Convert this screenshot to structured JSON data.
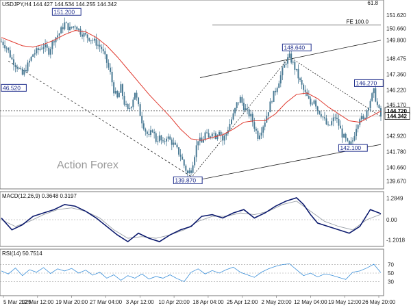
{
  "chart_data": [
    {
      "panel": "price",
      "type": "candlestick",
      "symbol_line": "USDJPY,H4  144.427 144.534 144.255 144.342",
      "watermark": "Action Forex",
      "ylim": [
        139.3,
        152.1
      ],
      "y_ticks": [
        "151.620",
        "150.660",
        "149.800",
        "148.475",
        "147.360",
        "146.220",
        "145.170",
        "144.720",
        "144.342",
        "142.920",
        "141.780",
        "140.660",
        "139.670"
      ],
      "top_right_partial": "61.8",
      "fe_label": "FE 100.0",
      "fe_level": 150.9,
      "current_price": "144.342",
      "ref_price": "144.720",
      "annotations": [
        "151.200",
        "46.520",
        "148.640",
        "146.270",
        "142.100",
        "139.870"
      ],
      "close_path": [
        [
          0,
          149.7
        ],
        [
          3,
          149.3
        ],
        [
          6,
          148.4
        ],
        [
          9,
          147.9
        ],
        [
          12,
          147.3
        ],
        [
          15,
          148.0
        ],
        [
          18,
          148.8
        ],
        [
          21,
          149.1
        ],
        [
          24,
          149.4
        ],
        [
          27,
          149.0
        ],
        [
          30,
          149.9
        ],
        [
          33,
          150.3
        ],
        [
          36,
          151.0
        ],
        [
          39,
          150.6
        ],
        [
          42,
          150.9
        ],
        [
          45,
          150.4
        ],
        [
          48,
          150.1
        ],
        [
          51,
          149.9
        ],
        [
          54,
          149.6
        ],
        [
          57,
          149.2
        ],
        [
          60,
          148.2
        ],
        [
          62,
          147.4
        ],
        [
          64,
          146.2
        ],
        [
          66,
          145.6
        ],
        [
          68,
          146.4
        ],
        [
          70,
          145.3
        ],
        [
          72,
          144.7
        ],
        [
          74,
          145.2
        ],
        [
          76,
          146.1
        ],
        [
          78,
          145.0
        ],
        [
          80,
          144.0
        ],
        [
          82,
          143.3
        ],
        [
          84,
          142.8
        ],
        [
          86,
          143.4
        ],
        [
          88,
          142.6
        ],
        [
          90,
          142.8
        ],
        [
          92,
          142.3
        ],
        [
          94,
          142.9
        ],
        [
          96,
          142.6
        ],
        [
          98,
          142.3
        ],
        [
          100,
          141.9
        ],
        [
          102,
          141.5
        ],
        [
          104,
          140.8
        ],
        [
          106,
          140.2
        ],
        [
          108,
          140.5
        ],
        [
          110,
          141.6
        ],
        [
          112,
          142.7
        ],
        [
          114,
          142.4
        ],
        [
          116,
          143.1
        ],
        [
          118,
          142.7
        ],
        [
          120,
          143.3
        ],
        [
          122,
          142.9
        ],
        [
          124,
          143.4
        ],
        [
          126,
          142.6
        ],
        [
          128,
          143.1
        ],
        [
          130,
          143.8
        ],
        [
          132,
          144.4
        ],
        [
          134,
          145.2
        ],
        [
          136,
          145.6
        ],
        [
          138,
          145.0
        ],
        [
          140,
          144.6
        ],
        [
          142,
          144.3
        ],
        [
          144,
          143.6
        ],
        [
          146,
          142.9
        ],
        [
          148,
          143.4
        ],
        [
          150,
          144.0
        ],
        [
          152,
          144.8
        ],
        [
          154,
          145.6
        ],
        [
          156,
          146.2
        ],
        [
          158,
          146.9
        ],
        [
          160,
          147.6
        ],
        [
          162,
          148.3
        ],
        [
          164,
          148.6
        ],
        [
          166,
          148.1
        ],
        [
          168,
          147.5
        ],
        [
          170,
          146.8
        ],
        [
          172,
          146.2
        ],
        [
          174,
          145.7
        ],
        [
          176,
          145.2
        ],
        [
          178,
          145.6
        ],
        [
          180,
          144.8
        ],
        [
          182,
          144.5
        ],
        [
          184,
          144.0
        ],
        [
          186,
          143.5
        ],
        [
          188,
          143.9
        ],
        [
          190,
          144.3
        ],
        [
          192,
          143.7
        ],
        [
          194,
          143.0
        ],
        [
          196,
          142.6
        ],
        [
          198,
          142.1
        ],
        [
          200,
          142.6
        ],
        [
          202,
          143.6
        ],
        [
          204,
          144.3
        ],
        [
          206,
          144.0
        ],
        [
          208,
          144.8
        ],
        [
          210,
          145.5
        ],
        [
          212,
          146.1
        ],
        [
          214,
          145.1
        ],
        [
          216,
          144.3
        ]
      ],
      "ma_path": [
        [
          0,
          150.0
        ],
        [
          6,
          149.7
        ],
        [
          12,
          149.4
        ],
        [
          18,
          149.3
        ],
        [
          24,
          149.5
        ],
        [
          30,
          149.8
        ],
        [
          36,
          150.2
        ],
        [
          42,
          150.5
        ],
        [
          48,
          150.4
        ],
        [
          54,
          150.0
        ],
        [
          60,
          149.4
        ],
        [
          66,
          148.6
        ],
        [
          72,
          147.7
        ],
        [
          78,
          146.8
        ],
        [
          84,
          145.9
        ],
        [
          90,
          145.1
        ],
        [
          96,
          144.3
        ],
        [
          102,
          143.4
        ],
        [
          108,
          142.7
        ],
        [
          114,
          142.6
        ],
        [
          120,
          142.8
        ],
        [
          126,
          143.0
        ],
        [
          132,
          143.4
        ],
        [
          138,
          143.9
        ],
        [
          144,
          144.0
        ],
        [
          150,
          144.0
        ],
        [
          156,
          144.5
        ],
        [
          162,
          145.3
        ],
        [
          168,
          145.9
        ],
        [
          174,
          146.0
        ],
        [
          180,
          145.6
        ],
        [
          186,
          145.0
        ],
        [
          192,
          144.5
        ],
        [
          198,
          144.0
        ],
        [
          204,
          143.9
        ],
        [
          210,
          144.3
        ],
        [
          216,
          144.7
        ]
      ]
    },
    {
      "panel": "macd",
      "type": "line",
      "title": "MACD(12,26,9) 0.3648 0.3197",
      "y_ticks": [
        "1.2849",
        "0.00",
        "-1.2018"
      ],
      "ylim": [
        -1.5,
        1.5
      ],
      "series": [
        {
          "values": [
            [
              0,
              0.1
            ],
            [
              6,
              -0.6
            ],
            [
              12,
              -0.3
            ],
            [
              18,
              0.2
            ],
            [
              24,
              0.4
            ],
            [
              30,
              0.6
            ],
            [
              36,
              0.9
            ],
            [
              42,
              0.8
            ],
            [
              48,
              0.5
            ],
            [
              54,
              0.1
            ],
            [
              60,
              -0.4
            ],
            [
              66,
              -0.9
            ],
            [
              72,
              -1.3
            ],
            [
              78,
              -0.8
            ],
            [
              84,
              -1.1
            ],
            [
              90,
              -1.3
            ],
            [
              96,
              -0.9
            ],
            [
              102,
              -0.6
            ],
            [
              108,
              -0.4
            ],
            [
              114,
              0.2
            ],
            [
              120,
              0.3
            ],
            [
              126,
              0.1
            ],
            [
              132,
              0.4
            ],
            [
              138,
              0.6
            ],
            [
              144,
              0.1
            ],
            [
              150,
              0.4
            ],
            [
              156,
              0.8
            ],
            [
              162,
              1.1
            ],
            [
              168,
              1.3
            ],
            [
              172,
              0.9
            ],
            [
              176,
              0.3
            ],
            [
              180,
              -0.2
            ],
            [
              186,
              -0.4
            ],
            [
              192,
              -0.6
            ],
            [
              198,
              -0.8
            ],
            [
              204,
              -0.4
            ],
            [
              210,
              0.6
            ],
            [
              216,
              0.36
            ]
          ]
        },
        {
          "values": [
            [
              0,
              0.0
            ],
            [
              8,
              -0.4
            ],
            [
              16,
              -0.1
            ],
            [
              24,
              0.3
            ],
            [
              32,
              0.6
            ],
            [
              40,
              0.7
            ],
            [
              48,
              0.5
            ],
            [
              56,
              0.1
            ],
            [
              64,
              -0.6
            ],
            [
              72,
              -1.1
            ],
            [
              80,
              -1.0
            ],
            [
              88,
              -1.1
            ],
            [
              96,
              -0.9
            ],
            [
              104,
              -0.6
            ],
            [
              112,
              -0.1
            ],
            [
              120,
              0.2
            ],
            [
              128,
              0.2
            ],
            [
              136,
              0.4
            ],
            [
              144,
              0.3
            ],
            [
              152,
              0.5
            ],
            [
              160,
              0.9
            ],
            [
              168,
              1.1
            ],
            [
              176,
              0.5
            ],
            [
              184,
              -0.1
            ],
            [
              192,
              -0.4
            ],
            [
              200,
              -0.6
            ],
            [
              208,
              0.0
            ],
            [
              216,
              0.32
            ]
          ]
        }
      ]
    },
    {
      "panel": "rsi",
      "type": "line",
      "title": "RSI(14) 50.7514",
      "y_ticks": [
        "70",
        "50",
        "30"
      ],
      "ylim": [
        0,
        100
      ],
      "series": [
        {
          "values": [
            [
              0,
              55
            ],
            [
              4,
              48
            ],
            [
              8,
              62
            ],
            [
              12,
              44
            ],
            [
              16,
              58
            ],
            [
              20,
              52
            ],
            [
              24,
              63
            ],
            [
              28,
              49
            ],
            [
              32,
              60
            ],
            [
              36,
              55
            ],
            [
              40,
              61
            ],
            [
              44,
              50
            ],
            [
              48,
              57
            ],
            [
              52,
              45
            ],
            [
              56,
              52
            ],
            [
              60,
              38
            ],
            [
              64,
              46
            ],
            [
              68,
              33
            ],
            [
              72,
              44
            ],
            [
              76,
              38
            ],
            [
              80,
              48
            ],
            [
              84,
              36
            ],
            [
              88,
              42
            ],
            [
              92,
              38
            ],
            [
              96,
              46
            ],
            [
              100,
              37
            ],
            [
              104,
              30
            ],
            [
              108,
              52
            ],
            [
              112,
              60
            ],
            [
              116,
              48
            ],
            [
              120,
              56
            ],
            [
              124,
              50
            ],
            [
              128,
              58
            ],
            [
              132,
              64
            ],
            [
              136,
              52
            ],
            [
              140,
              46
            ],
            [
              144,
              40
            ],
            [
              148,
              52
            ],
            [
              152,
              60
            ],
            [
              156,
              66
            ],
            [
              160,
              70
            ],
            [
              164,
              72
            ],
            [
              168,
              58
            ],
            [
              172,
              44
            ],
            [
              176,
              50
            ],
            [
              180,
              41
            ],
            [
              184,
              48
            ],
            [
              188,
              45
            ],
            [
              192,
              40
            ],
            [
              196,
              35
            ],
            [
              200,
              52
            ],
            [
              204,
              55
            ],
            [
              208,
              62
            ],
            [
              212,
              71
            ],
            [
              216,
              51
            ]
          ]
        }
      ]
    }
  ],
  "x_axis": {
    "labels": [
      "5 Mar 2025",
      "12 Mar 12:00",
      "19 Mar 20:00",
      "27 Mar 04:00",
      "3 Apr 12:00",
      "10 Apr 20:00",
      "18 Apr 04:00",
      "25 Apr 12:00",
      "2 May 20:00",
      "12 May 04:00",
      "19 May 12:00",
      "26 May 20:00"
    ]
  },
  "colors": {
    "candle": "#4a7a94",
    "ma": "#e03a2f",
    "macd": "#0d1b6e",
    "signal": "#9aa0a8",
    "rsi": "#3a8fd9",
    "annotation": "#1f2e8c",
    "trend": "#222222"
  }
}
